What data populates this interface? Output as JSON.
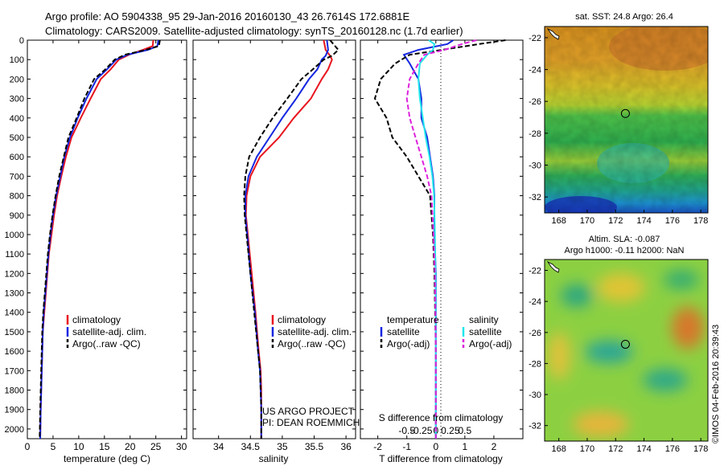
{
  "header": {
    "line1": "Argo profile: AO 5904338_95 29-Jan-2016 20160130_43 26.7614S 172.6881E",
    "line2": "Climatology: CARS2009. Satellite-adjusted climatology: synTS_20160128.nc (1.7d earlier)"
  },
  "credits": {
    "project": "US ARGO PROJECT",
    "pi": "PI: DEAN ROEMMICH",
    "side": "©IMOS 04-Feb-2016 20:39:43"
  },
  "colors": {
    "climatology": "#e8141e",
    "satellite": "#1426e0",
    "argo": "#000000",
    "sal_sat": "#22e6ec",
    "sal_argo": "#dd22dd"
  },
  "chart_data": [
    {
      "type": "line",
      "panel": "temperature",
      "xlabel": "temperature (deg C)",
      "xlim": [
        0,
        31
      ],
      "ylim": [
        2050,
        0
      ],
      "xticks": [
        0,
        5,
        10,
        15,
        20,
        25,
        30
      ],
      "yticks": [
        0,
        100,
        200,
        300,
        400,
        500,
        600,
        700,
        800,
        900,
        1000,
        1100,
        1200,
        1300,
        1400,
        1500,
        1600,
        1700,
        1800,
        1900,
        2000
      ],
      "legend": [
        "climatology",
        "satellite-adj. clim.",
        "Argo(..raw -QC)"
      ],
      "legend_position": "lower-center",
      "series": [
        {
          "name": "climatology",
          "color": "#e8141e",
          "style": "solid",
          "x": [
            24.5,
            24.4,
            22.5,
            19.8,
            17.8,
            16.2,
            14.3,
            12.3,
            10.4,
            8.6,
            7.5,
            6.6,
            5.8,
            5.2,
            4.7,
            4.2,
            3.9,
            3.6,
            3.3,
            3.0,
            2.8,
            2.6,
            2.5
          ],
          "y": [
            0,
            30,
            50,
            75,
            100,
            150,
            200,
            300,
            400,
            500,
            600,
            700,
            800,
            900,
            1000,
            1100,
            1200,
            1300,
            1400,
            1500,
            1700,
            1900,
            2050
          ]
        },
        {
          "name": "satellite-adj. clim.",
          "color": "#1426e0",
          "style": "solid",
          "x": [
            25.5,
            25.3,
            23.5,
            19.5,
            17.3,
            15.5,
            13.5,
            11.5,
            9.8,
            8.3,
            7.2,
            6.4,
            5.6,
            5.0,
            4.5,
            4.1,
            3.8,
            3.5,
            3.2,
            3.0,
            2.8,
            2.6,
            2.5
          ],
          "y": [
            0,
            30,
            50,
            75,
            100,
            150,
            200,
            300,
            400,
            500,
            600,
            700,
            800,
            900,
            1000,
            1100,
            1200,
            1300,
            1400,
            1500,
            1700,
            1900,
            2050
          ]
        },
        {
          "name": "Argo(..raw -QC)",
          "color": "#000000",
          "style": "dashed",
          "x": [
            25.8,
            25.6,
            23.0,
            19.0,
            17.0,
            15.2,
            13.0,
            11.1,
            9.6,
            8.0,
            7.1,
            6.2,
            5.5,
            4.9,
            4.4,
            4.0,
            3.7,
            3.4,
            3.1,
            2.9,
            2.7,
            2.5,
            2.4
          ],
          "y": [
            0,
            30,
            50,
            75,
            100,
            150,
            200,
            300,
            400,
            500,
            600,
            700,
            800,
            900,
            1000,
            1100,
            1200,
            1300,
            1400,
            1500,
            1700,
            1900,
            2050
          ]
        }
      ]
    },
    {
      "type": "line",
      "panel": "salinity",
      "xlabel": "salinity",
      "xlim": [
        33.6,
        36.15
      ],
      "ylim": [
        2050,
        0
      ],
      "xticks": [
        34,
        34.5,
        35,
        35.5,
        36
      ],
      "legend": [
        "climatology",
        "satellite-adj. clim.",
        "Argo(..raw -QC)"
      ],
      "legend_position": "lower-center",
      "series": [
        {
          "name": "climatology",
          "color": "#e8141e",
          "style": "solid",
          "x": [
            35.65,
            35.68,
            35.75,
            35.78,
            35.72,
            35.62,
            35.45,
            35.18,
            34.95,
            34.65,
            34.5,
            34.44,
            34.43,
            34.46,
            34.52,
            34.58,
            34.63,
            34.66,
            34.67,
            34.67,
            34.67
          ],
          "y": [
            0,
            50,
            80,
            100,
            150,
            200,
            300,
            400,
            500,
            600,
            700,
            800,
            900,
            1000,
            1200,
            1400,
            1600,
            1700,
            1800,
            1900,
            2050
          ]
        },
        {
          "name": "satellite-adj. clim.",
          "color": "#1426e0",
          "style": "solid",
          "x": [
            35.7,
            35.72,
            35.68,
            35.62,
            35.55,
            35.42,
            35.22,
            35.0,
            34.8,
            34.6,
            34.47,
            34.42,
            34.42,
            34.45,
            34.5,
            34.57,
            34.62,
            34.65,
            34.66,
            34.67,
            34.67
          ],
          "y": [
            0,
            50,
            80,
            100,
            150,
            200,
            300,
            400,
            500,
            600,
            700,
            800,
            900,
            1000,
            1200,
            1400,
            1600,
            1700,
            1800,
            1900,
            2050
          ]
        },
        {
          "name": "Argo(..raw -QC)",
          "color": "#000000",
          "style": "dashed",
          "x": [
            35.75,
            35.88,
            35.78,
            35.65,
            35.48,
            35.3,
            35.08,
            34.85,
            34.65,
            34.48,
            34.42,
            34.4,
            34.41,
            34.44,
            34.5,
            34.56,
            34.62,
            34.65,
            34.66,
            34.67,
            34.67
          ],
          "y": [
            0,
            50,
            80,
            100,
            150,
            200,
            300,
            400,
            500,
            600,
            700,
            800,
            900,
            1000,
            1200,
            1400,
            1600,
            1700,
            1800,
            1900,
            2050
          ]
        }
      ]
    },
    {
      "type": "line",
      "panel": "difference",
      "xlabel": "T difference from climatology",
      "top_xlabel": "S difference from climatology",
      "xlim": [
        -2.6,
        3.0
      ],
      "ylim": [
        2050,
        0
      ],
      "xticks": [
        -2,
        -1,
        0,
        1,
        2
      ],
      "top_xticks": [
        -0.5,
        -0.25,
        0,
        0.25,
        0.5
      ],
      "legend_groups": [
        {
          "title": "temperature",
          "items": [
            "satellite",
            "Argo(-adj)"
          ]
        },
        {
          "title": "salinity",
          "items": [
            "satellite",
            "Argo(-adj)"
          ]
        }
      ],
      "series": [
        {
          "name": "temperature satellite",
          "color": "#1426e0",
          "style": "solid",
          "x": [
            0.6,
            0.4,
            -0.6,
            -1.1,
            -0.9,
            -0.6,
            -0.5,
            -0.5,
            -0.3,
            -0.2,
            -0.1,
            -0.05,
            -0.05,
            0,
            0,
            0
          ],
          "y": [
            0,
            20,
            50,
            75,
            120,
            200,
            300,
            400,
            500,
            600,
            700,
            800,
            1000,
            1200,
            1600,
            2050
          ]
        },
        {
          "name": "temperature Argo(-adj)",
          "color": "#000000",
          "style": "dashed",
          "x": [
            2.4,
            1.5,
            0.2,
            -0.9,
            -1.4,
            -1.9,
            -2.1,
            -1.7,
            -1.5,
            -1.0,
            -0.6,
            -0.2,
            -0.1,
            -0.05,
            0,
            0
          ],
          "y": [
            0,
            20,
            50,
            75,
            120,
            200,
            300,
            400,
            500,
            600,
            700,
            800,
            1000,
            1200,
            1600,
            2050
          ]
        },
        {
          "name": "salinity satellite",
          "color": "#22e6ec",
          "style": "solid",
          "x": [
            -0.25,
            -0.05,
            -0.1,
            -0.3,
            -0.55,
            -0.6,
            -0.55,
            -0.45,
            -0.35,
            -0.22,
            -0.12,
            -0.06,
            -0.03,
            -0.01,
            0,
            0
          ],
          "y": [
            0,
            20,
            50,
            75,
            120,
            200,
            300,
            400,
            500,
            600,
            700,
            800,
            1000,
            1200,
            1600,
            2050
          ]
        },
        {
          "name": "salinity Argo(-adj)",
          "color": "#dd22dd",
          "style": "dashed",
          "x": [
            1.4,
            0.9,
            0.3,
            -0.4,
            -0.6,
            -0.9,
            -1.0,
            -0.9,
            -0.7,
            -0.5,
            -0.3,
            -0.15,
            -0.08,
            -0.03,
            0,
            0
          ],
          "y": [
            0,
            20,
            50,
            75,
            120,
            200,
            300,
            400,
            500,
            600,
            700,
            800,
            1000,
            1200,
            1600,
            2050
          ]
        }
      ]
    },
    {
      "type": "heatmap",
      "panel": "sst-map",
      "title": "sat. SST: 24.8 Argo: 26.4",
      "xlim": [
        167,
        178.5
      ],
      "ylim": [
        -33,
        -21.3
      ],
      "xticks": [
        168,
        170,
        172,
        174,
        176,
        178
      ],
      "yticks": [
        -22,
        -24,
        -26,
        -28,
        -30,
        -32
      ],
      "marker": {
        "lon": 172.69,
        "lat": -26.76
      }
    },
    {
      "type": "heatmap",
      "panel": "sla-map",
      "title": "Altim. SLA: -0.087",
      "subtitle": "Argo h1000: -0.11 h2000: NaN",
      "xlim": [
        167,
        178.5
      ],
      "ylim": [
        -33,
        -21.3
      ],
      "xticks": [
        168,
        170,
        172,
        174,
        176,
        178
      ],
      "yticks": [
        -22,
        -24,
        -26,
        -28,
        -30,
        -32
      ],
      "marker": {
        "lon": 172.69,
        "lat": -26.76
      }
    }
  ]
}
